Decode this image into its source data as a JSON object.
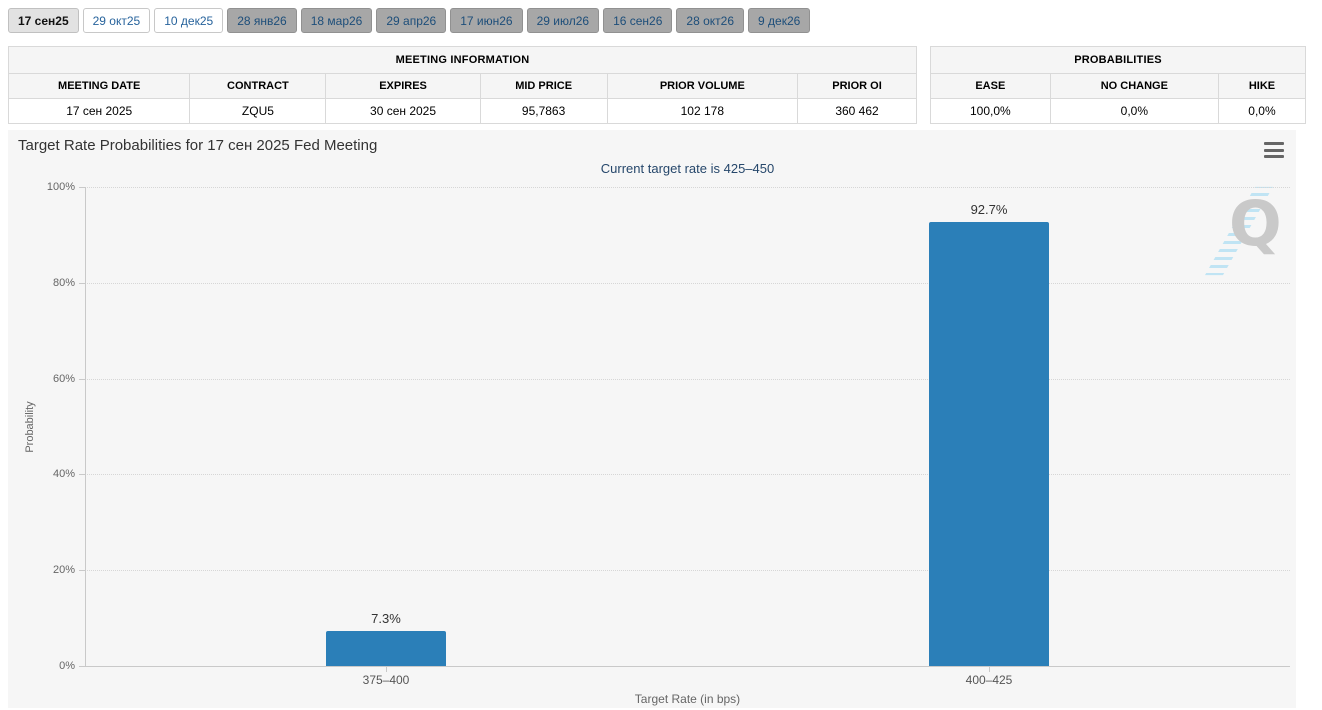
{
  "tabs": [
    {
      "label": "17 сен25"
    },
    {
      "label": "29 окт25"
    },
    {
      "label": "10 дек25"
    },
    {
      "label": "28 янв26"
    },
    {
      "label": "18 мар26"
    },
    {
      "label": "29 апр26"
    },
    {
      "label": "17 июн26"
    },
    {
      "label": "29 июл26"
    },
    {
      "label": "16 сен26"
    },
    {
      "label": "28 окт26"
    },
    {
      "label": "9 дек26"
    }
  ],
  "meeting_information": {
    "title": "MEETING INFORMATION",
    "columns": [
      "MEETING DATE",
      "CONTRACT",
      "EXPIRES",
      "MID PRICE",
      "PRIOR VOLUME",
      "PRIOR OI"
    ],
    "values": [
      "17 сен 2025",
      "ZQU5",
      "30 сен 2025",
      "95,7863",
      "102 178",
      "360 462"
    ]
  },
  "probabilities": {
    "title": "PROBABILITIES",
    "columns": [
      "EASE",
      "NO CHANGE",
      "HIKE"
    ],
    "values": [
      "100,0%",
      "0,0%",
      "0,0%"
    ]
  },
  "chart_data": {
    "type": "bar",
    "title": "Target Rate Probabilities for 17 сен 2025 Fed Meeting",
    "subtitle": "Current target rate is 425–450",
    "categories": [
      "375–400",
      "400–425"
    ],
    "values": [
      7.3,
      92.7
    ],
    "data_labels": [
      "7.3%",
      "92.7%"
    ],
    "xlabel": "Target Rate (in bps)",
    "ylabel": "Probability",
    "ylim": [
      0,
      100
    ],
    "yticks": [
      "0%",
      "20%",
      "40%",
      "60%",
      "80%",
      "100%"
    ],
    "grid": "dotted horizontal gridlines at 20% steps",
    "legend": "none",
    "bar_color": "#2b7fb8",
    "watermark_letter": "Q"
  },
  "colors": {
    "bar": "#2b7fb8",
    "chart_background": "#f6f6f6",
    "subtitle_text": "#26476b",
    "active_tab_bg": "#e2e2e2",
    "gray_tab_bg": "#a7a7a7",
    "tab_link_text": "#27639c"
  }
}
